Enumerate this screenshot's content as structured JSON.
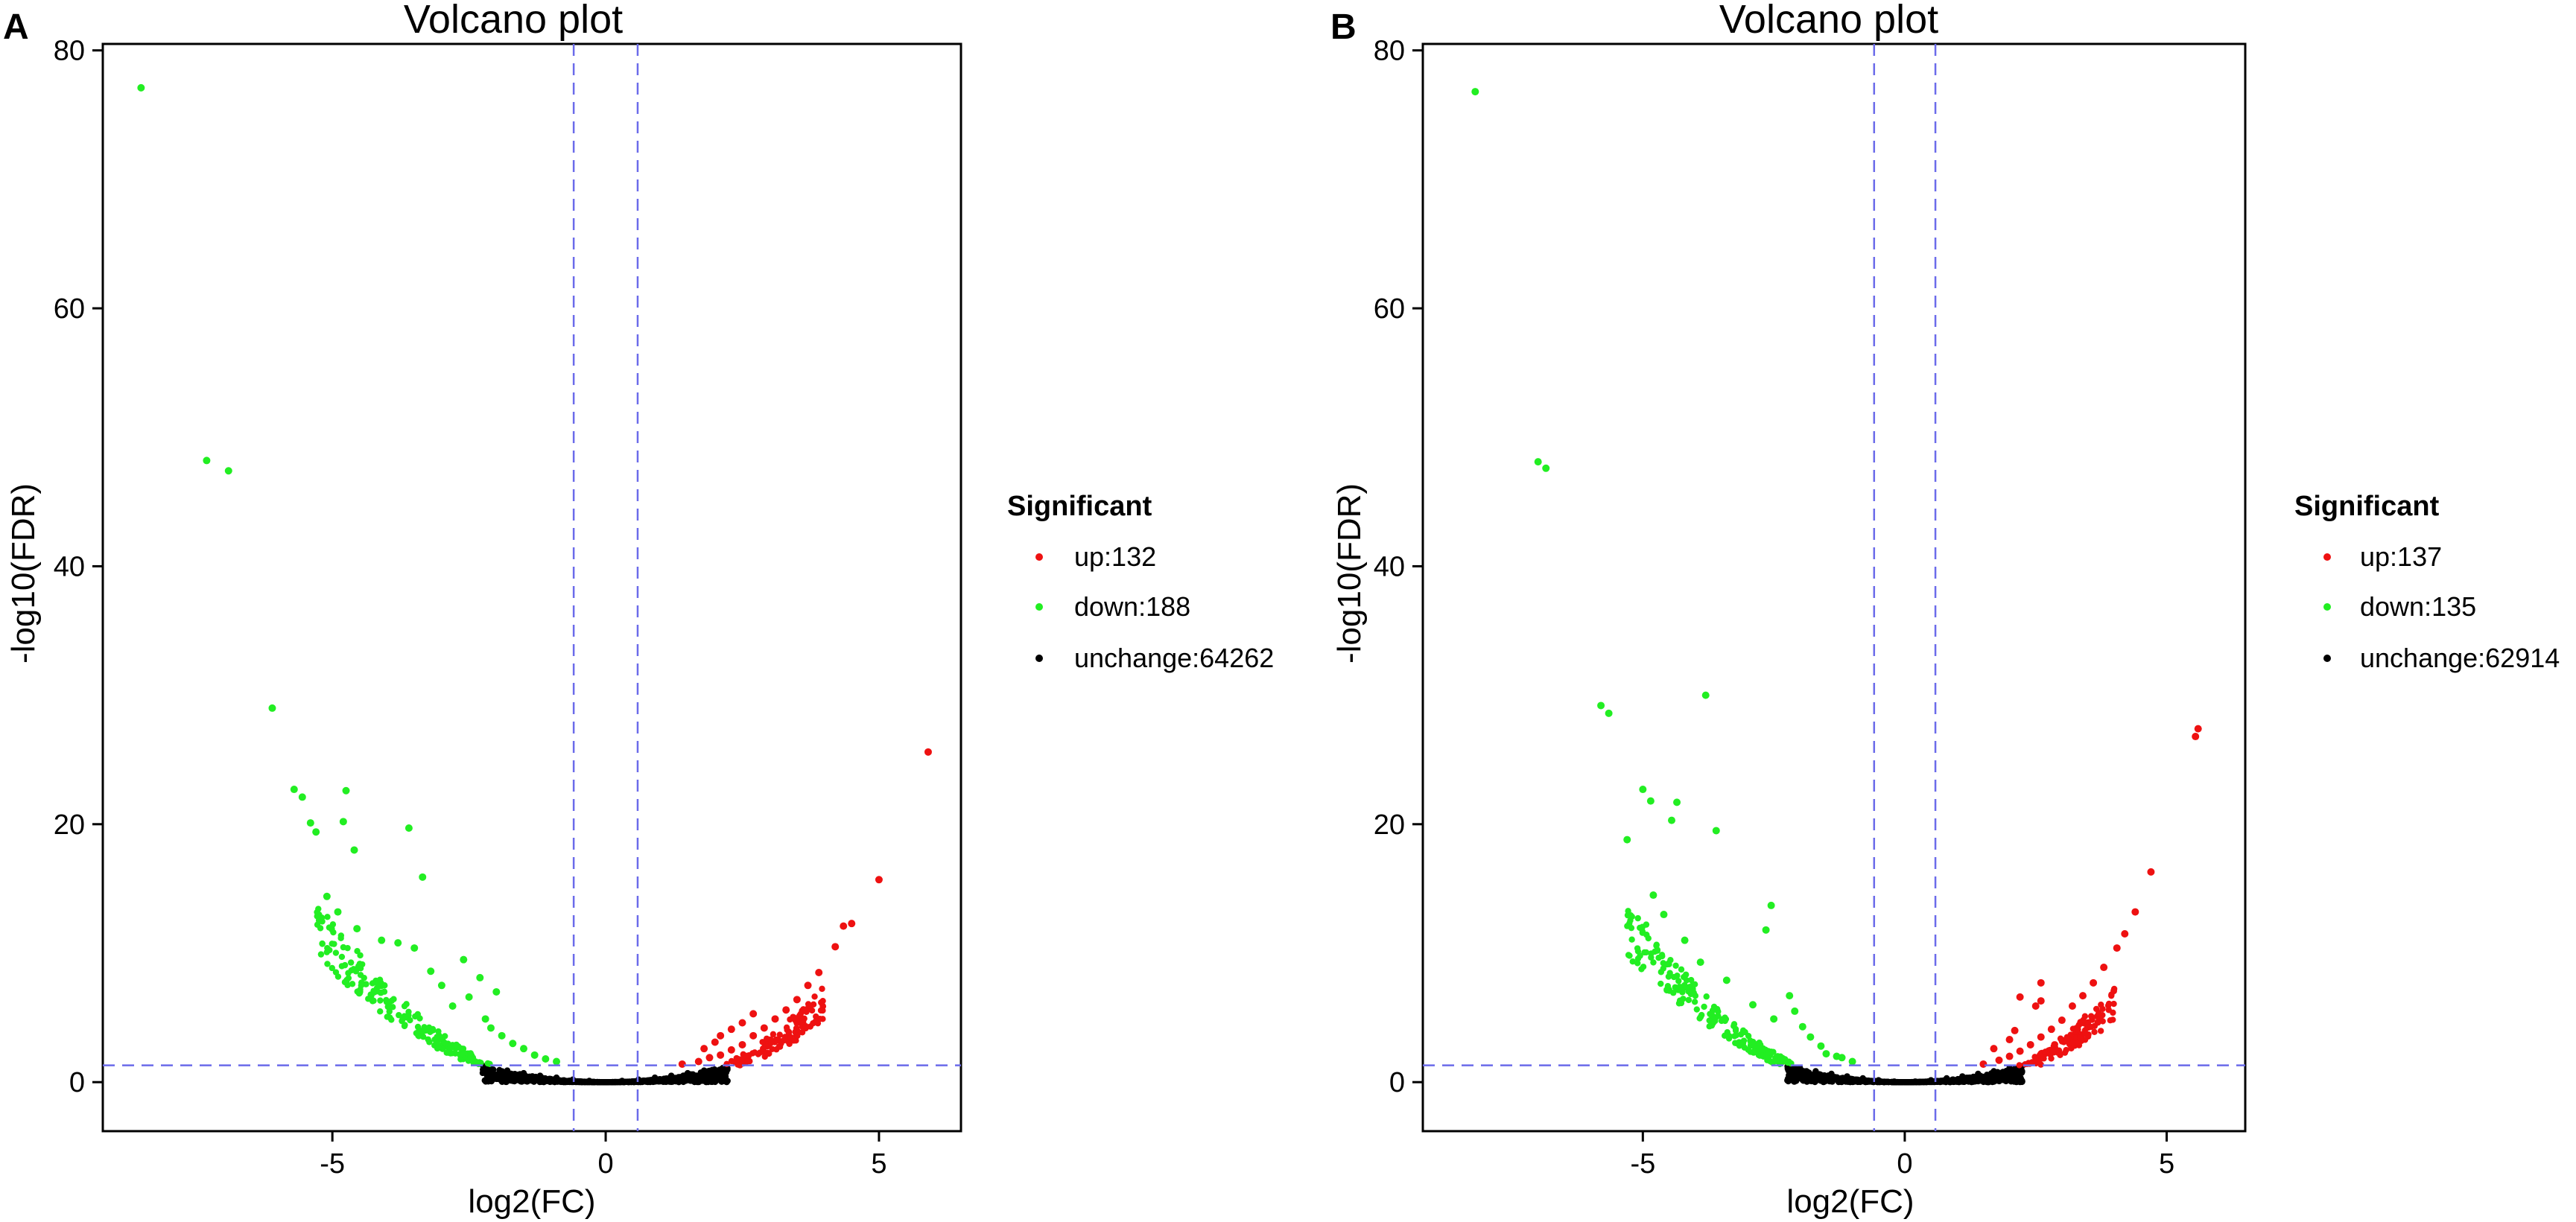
{
  "chart_data": [
    {
      "panel": "A",
      "type": "scatter",
      "title": "Volcano plot",
      "xlabel": "log2(FC)",
      "ylabel": "-log10(FDR)",
      "xlim": [
        -9.2,
        6.5
      ],
      "ylim": [
        -3.8,
        80.5
      ],
      "xticks": [
        -5,
        0,
        5
      ],
      "yticks": [
        0,
        20,
        40,
        60,
        80
      ],
      "threshold_lines": {
        "x": [
          -0.585,
          0.585
        ],
        "y": 1.3
      },
      "legend": {
        "title": "Significant",
        "entries": [
          {
            "label": "up:132",
            "color": "#ee1111"
          },
          {
            "label": "down:188",
            "color": "#22ee22"
          },
          {
            "label": "unchange:64262",
            "color": "#000000"
          }
        ]
      },
      "series": [
        {
          "name": "down",
          "color": "#22ee22",
          "points": [
            [
              -8.5,
              77.1
            ],
            [
              -7.3,
              48.2
            ],
            [
              -6.9,
              47.4
            ],
            [
              -6.1,
              29
            ],
            [
              -5.7,
              22.7
            ],
            [
              -5.55,
              22.1
            ],
            [
              -5.4,
              20.1
            ],
            [
              -5.3,
              19.4
            ],
            [
              -4.75,
              22.6
            ],
            [
              -4.8,
              20.2
            ],
            [
              -4.6,
              18.0
            ],
            [
              -3.6,
              19.7
            ],
            [
              -3.35,
              15.9
            ],
            [
              -5.1,
              14.4
            ],
            [
              -4.9,
              13.2
            ],
            [
              -4.55,
              11.9
            ],
            [
              -4.1,
              11.0
            ],
            [
              -3.8,
              10.8
            ],
            [
              -3.5,
              10.4
            ],
            [
              -2.6,
              9.5
            ],
            [
              -2.3,
              8.1
            ],
            [
              -2.0,
              7.0
            ],
            [
              -3.2,
              8.6
            ],
            [
              -2.5,
              6.6
            ],
            [
              -3.0,
              7.5
            ],
            [
              -2.8,
              5.9
            ],
            [
              -2.2,
              4.9
            ],
            [
              -2.1,
              4.2
            ],
            [
              -1.9,
              3.6
            ],
            [
              -1.7,
              3.0
            ],
            [
              -1.5,
              2.6
            ],
            [
              -1.3,
              2.1
            ],
            [
              -1.1,
              1.8
            ],
            [
              -0.9,
              1.6
            ]
          ]
        },
        {
          "name": "up",
          "color": "#ee1111",
          "points": [
            [
              5.9,
              25.6
            ],
            [
              5.0,
              15.7
            ],
            [
              4.5,
              12.3
            ],
            [
              4.35,
              12.1
            ],
            [
              4.2,
              10.5
            ],
            [
              3.9,
              8.5
            ],
            [
              3.7,
              7.5
            ],
            [
              3.5,
              6.4
            ],
            [
              3.3,
              5.6
            ],
            [
              3.1,
              4.9
            ],
            [
              2.9,
              4.2
            ],
            [
              2.7,
              3.6
            ],
            [
              2.5,
              2.9
            ],
            [
              2.3,
              2.5
            ],
            [
              2.1,
              2.1
            ],
            [
              1.9,
              1.9
            ],
            [
              1.7,
              1.6
            ],
            [
              1.4,
              1.4
            ],
            [
              2.7,
              5.3
            ],
            [
              2.5,
              4.6
            ],
            [
              2.3,
              4.1
            ],
            [
              2.1,
              3.6
            ],
            [
              2.0,
              3.1
            ],
            [
              1.8,
              2.6
            ]
          ]
        },
        {
          "name": "unchange",
          "color": "#000000",
          "points": [
            [
              -2.2,
              1.2
            ],
            [
              -1.8,
              0.9
            ],
            [
              -1.5,
              0.7
            ],
            [
              -1.2,
              0.5
            ],
            [
              -0.9,
              0.35
            ],
            [
              -0.6,
              0.2
            ],
            [
              -0.3,
              0.1
            ],
            [
              0,
              0
            ],
            [
              0.3,
              0.1
            ],
            [
              0.6,
              0.2
            ],
            [
              0.9,
              0.35
            ],
            [
              1.2,
              0.5
            ],
            [
              1.5,
              0.7
            ],
            [
              1.8,
              0.9
            ],
            [
              2.2,
              1.2
            ]
          ]
        }
      ]
    },
    {
      "panel": "B",
      "type": "scatter",
      "title": "Volcano plot",
      "xlabel": "log2(FC)",
      "ylabel": "-log10(FDR)",
      "xlim": [
        -9.2,
        6.5
      ],
      "ylim": [
        -3.8,
        80.5
      ],
      "xticks": [
        -5,
        0,
        5
      ],
      "yticks": [
        0,
        20,
        40,
        60,
        80
      ],
      "threshold_lines": {
        "x": [
          -0.585,
          0.585
        ],
        "y": 1.3
      },
      "legend": {
        "title": "Significant",
        "entries": [
          {
            "label": "up:137",
            "color": "#ee1111"
          },
          {
            "label": "down:135",
            "color": "#22ee22"
          },
          {
            "label": "unchange:62914",
            "color": "#000000"
          }
        ]
      },
      "series": [
        {
          "name": "down",
          "color": "#22ee22",
          "points": [
            [
              -8.2,
              76.8
            ],
            [
              -7.0,
              48.1
            ],
            [
              -6.85,
              47.6
            ],
            [
              -5.8,
              29.2
            ],
            [
              -5.65,
              28.6
            ],
            [
              -3.8,
              30.0
            ],
            [
              -5.0,
              22.7
            ],
            [
              -4.85,
              21.8
            ],
            [
              -4.35,
              21.7
            ],
            [
              -4.45,
              20.3
            ],
            [
              -5.3,
              18.8
            ],
            [
              -3.6,
              19.5
            ],
            [
              -4.8,
              14.5
            ],
            [
              -4.6,
              13.0
            ],
            [
              -2.55,
              13.7
            ],
            [
              -2.65,
              11.8
            ],
            [
              -4.2,
              11.0
            ],
            [
              -3.9,
              9.3
            ],
            [
              -3.4,
              7.9
            ],
            [
              -2.9,
              6.0
            ],
            [
              -2.5,
              4.9
            ],
            [
              -2.2,
              6.7
            ],
            [
              -2.1,
              5.5
            ],
            [
              -1.95,
              4.3
            ],
            [
              -1.8,
              3.5
            ],
            [
              -1.6,
              2.8
            ],
            [
              -1.5,
              2.2
            ],
            [
              -1.3,
              2.0
            ],
            [
              -1.2,
              1.9
            ],
            [
              -1.0,
              1.6
            ]
          ]
        },
        {
          "name": "up",
          "color": "#ee1111",
          "points": [
            [
              5.6,
              27.4
            ],
            [
              5.55,
              26.8
            ],
            [
              4.7,
              16.3
            ],
            [
              4.4,
              13.2
            ],
            [
              4.2,
              11.5
            ],
            [
              4.05,
              10.4
            ],
            [
              3.8,
              8.9
            ],
            [
              3.6,
              7.7
            ],
            [
              3.4,
              6.7
            ],
            [
              3.2,
              5.9
            ],
            [
              3.0,
              4.8
            ],
            [
              2.8,
              4.1
            ],
            [
              2.6,
              3.5
            ],
            [
              2.4,
              2.9
            ],
            [
              2.2,
              2.4
            ],
            [
              2.0,
              2.0
            ],
            [
              1.8,
              1.7
            ],
            [
              1.5,
              1.4
            ],
            [
              2.6,
              7.7
            ],
            [
              2.5,
              5.9
            ],
            [
              2.2,
              6.6
            ],
            [
              2.6,
              6.3
            ],
            [
              2.1,
              4.0
            ],
            [
              2.0,
              3.3
            ],
            [
              1.7,
              2.6
            ]
          ]
        },
        {
          "name": "unchange",
          "color": "#000000",
          "points": [
            [
              -2.0,
              1.1
            ],
            [
              -1.7,
              0.85
            ],
            [
              -1.4,
              0.65
            ],
            [
              -1.1,
              0.45
            ],
            [
              -0.8,
              0.3
            ],
            [
              -0.5,
              0.15
            ],
            [
              -0.2,
              0.05
            ],
            [
              0,
              0
            ],
            [
              0.2,
              0.05
            ],
            [
              0.5,
              0.15
            ],
            [
              0.8,
              0.3
            ],
            [
              1.1,
              0.45
            ],
            [
              1.4,
              0.65
            ],
            [
              1.7,
              0.85
            ],
            [
              2.0,
              1.1
            ]
          ]
        }
      ]
    }
  ]
}
